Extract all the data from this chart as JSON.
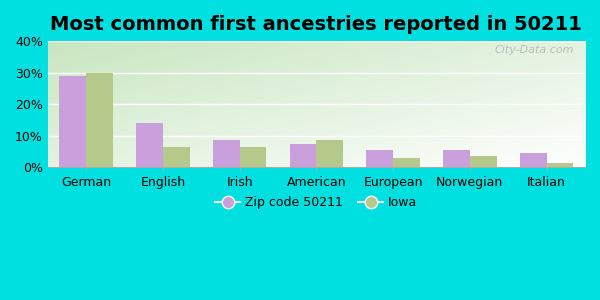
{
  "title": "Most common first ancestries reported in 50211",
  "categories": [
    "German",
    "English",
    "Irish",
    "American",
    "European",
    "Norwegian",
    "Italian"
  ],
  "zip_values": [
    29,
    14,
    8.5,
    7.5,
    5.5,
    5.5,
    4.5
  ],
  "iowa_values": [
    30,
    6.5,
    6.5,
    8.5,
    3,
    3.5,
    1.5
  ],
  "zip_color": "#c9a0dc",
  "iowa_color": "#b5c98a",
  "ylim": [
    0,
    40
  ],
  "yticks": [
    0,
    10,
    20,
    30,
    40
  ],
  "ytick_labels": [
    "0%",
    "10%",
    "20%",
    "30%",
    "40%"
  ],
  "legend_zip_label": "Zip code 50211",
  "legend_iowa_label": "Iowa",
  "bar_width": 0.35,
  "outer_bg": "#00e0e0",
  "title_fontsize": 14,
  "watermark": "City-Data.com",
  "grad_bottom_left": "#c8e6c0",
  "grad_top_right": "#ffffff"
}
